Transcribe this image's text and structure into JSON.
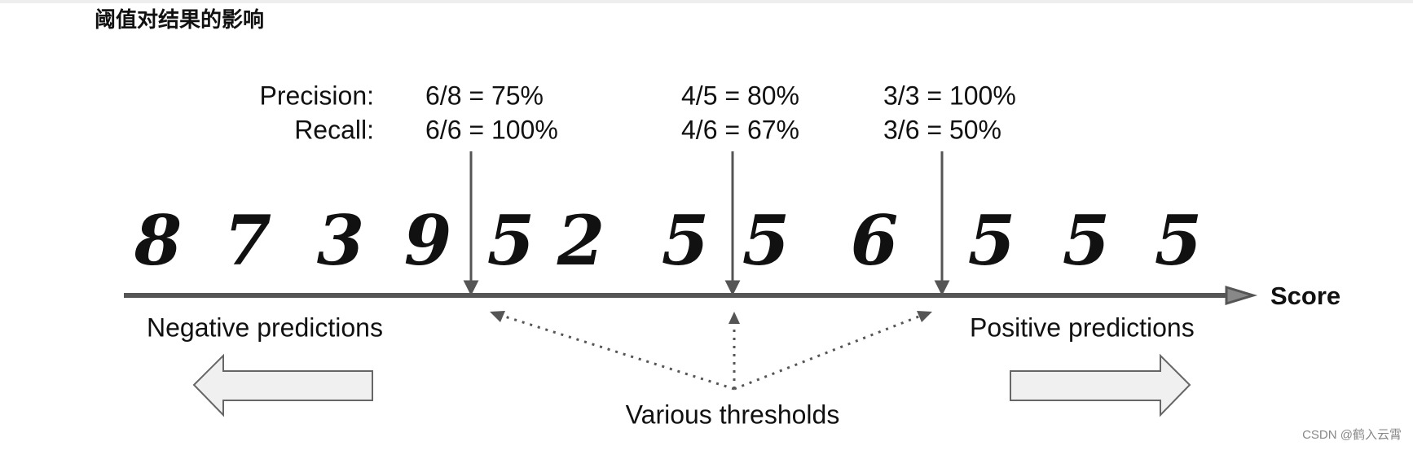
{
  "header": {
    "title": "阈值对结果的影响"
  },
  "diagram": {
    "row_labels": [
      "Precision:",
      "Recall:"
    ],
    "thresholds": [
      {
        "precision": "6/8 = 75%",
        "recall": "6/6 = 100%"
      },
      {
        "precision": "4/5 = 80%",
        "recall": "4/6 = 67%"
      },
      {
        "precision": "3/3 = 100%",
        "recall": "3/6 = 50%"
      }
    ],
    "digits": [
      "8",
      "7",
      "3",
      "9",
      "5",
      "2",
      "5",
      "5",
      "6",
      "5",
      "5",
      "5"
    ],
    "axis_label": "Score",
    "negative_label": "Negative predictions",
    "positive_label": "Positive predictions",
    "thresholds_label": "Various thresholds"
  },
  "watermark": "CSDN @鹤入云霄"
}
